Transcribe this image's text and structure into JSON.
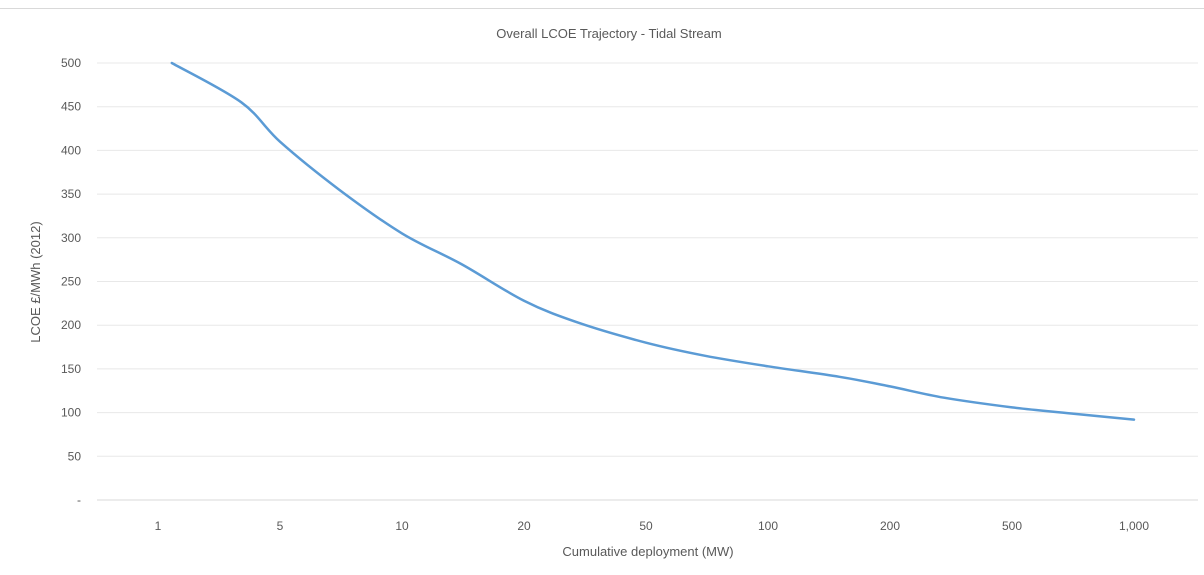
{
  "chart_data": {
    "type": "line",
    "title": "Overall LCOE Trajectory - Tidal Stream",
    "xlabel": "Cumulative deployment (MW)",
    "ylabel": "LCOE £/MWh (2012)",
    "x_categories": [
      "1",
      "5",
      "10",
      "20",
      "50",
      "100",
      "200",
      "500",
      "1,000"
    ],
    "y_ticks": [
      "-",
      "50",
      "100",
      "150",
      "200",
      "250",
      "300",
      "350",
      "400",
      "450",
      "500"
    ],
    "ylim": [
      0,
      500
    ],
    "grid": true,
    "series": [
      {
        "color": "#5b9bd5",
        "points": [
          {
            "x": 1.2,
            "y": 500
          },
          {
            "x": 3,
            "y": 455
          },
          {
            "x": 5,
            "y": 410
          },
          {
            "x": 7,
            "y": 355
          },
          {
            "x": 10,
            "y": 305
          },
          {
            "x": 14,
            "y": 270
          },
          {
            "x": 20,
            "y": 228
          },
          {
            "x": 30,
            "y": 203
          },
          {
            "x": 50,
            "y": 180
          },
          {
            "x": 70,
            "y": 165
          },
          {
            "x": 100,
            "y": 153
          },
          {
            "x": 150,
            "y": 141
          },
          {
            "x": 200,
            "y": 130
          },
          {
            "x": 300,
            "y": 117
          },
          {
            "x": 500,
            "y": 106
          },
          {
            "x": 700,
            "y": 99
          },
          {
            "x": 1000,
            "y": 92
          }
        ]
      }
    ]
  }
}
